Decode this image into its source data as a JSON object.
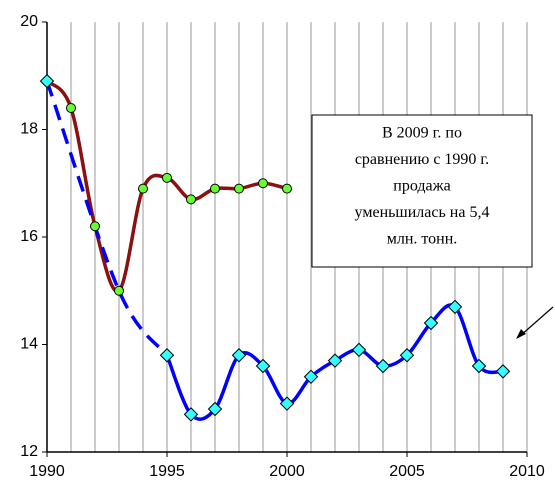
{
  "chart_data": {
    "type": "line",
    "xlim": [
      1990,
      2010
    ],
    "xticks": [
      1990,
      1995,
      2000,
      2005,
      2010
    ],
    "xgrid": [
      1990,
      1991,
      1992,
      1993,
      1994,
      1995,
      1996,
      1997,
      1998,
      1999,
      2000,
      2001,
      2002,
      2003,
      2004,
      2005,
      2006,
      2007,
      2008,
      2009,
      2010
    ],
    "ylim": [
      12,
      20
    ],
    "yticks": [
      12,
      14,
      16,
      18,
      20
    ],
    "series": [
      {
        "color": "#8b1010",
        "marker": "circle",
        "marker_color": "#66ff33",
        "style": "solid",
        "x": [
          1990,
          1991,
          1992,
          1993,
          1994,
          1995,
          1996,
          1997,
          1998,
          1999,
          2000
        ],
        "values": [
          18.9,
          18.4,
          16.2,
          15.0,
          16.9,
          17.1,
          16.7,
          16.9,
          16.9,
          17.0,
          16.9
        ]
      },
      {
        "color": "#0000ff",
        "marker": "none",
        "style": "dashed",
        "x": [
          1990,
          1993,
          1995
        ],
        "values": [
          18.9,
          15.0,
          13.8
        ]
      },
      {
        "color": "#0000ff",
        "marker": "diamond",
        "marker_color": "#33ffff",
        "style": "solid",
        "x": [
          1990,
          1991,
          1992,
          1993,
          1994,
          1995,
          1996,
          1997,
          1998,
          1999,
          2000,
          2001,
          2002,
          2003,
          2004,
          2005,
          2006,
          2007,
          2008,
          2009
        ],
        "values": [
          18.9,
          null,
          null,
          null,
          null,
          13.8,
          12.7,
          12.8,
          13.8,
          13.6,
          12.9,
          13.4,
          13.7,
          13.9,
          13.6,
          13.8,
          14.4,
          14.7,
          13.6,
          13.5
        ]
      }
    ],
    "annotation": [
      "В 2009 г. по",
      "сравнению с 1990 г.",
      "продажа",
      "уменьшилась на 5,4",
      "млн. тонн."
    ]
  }
}
